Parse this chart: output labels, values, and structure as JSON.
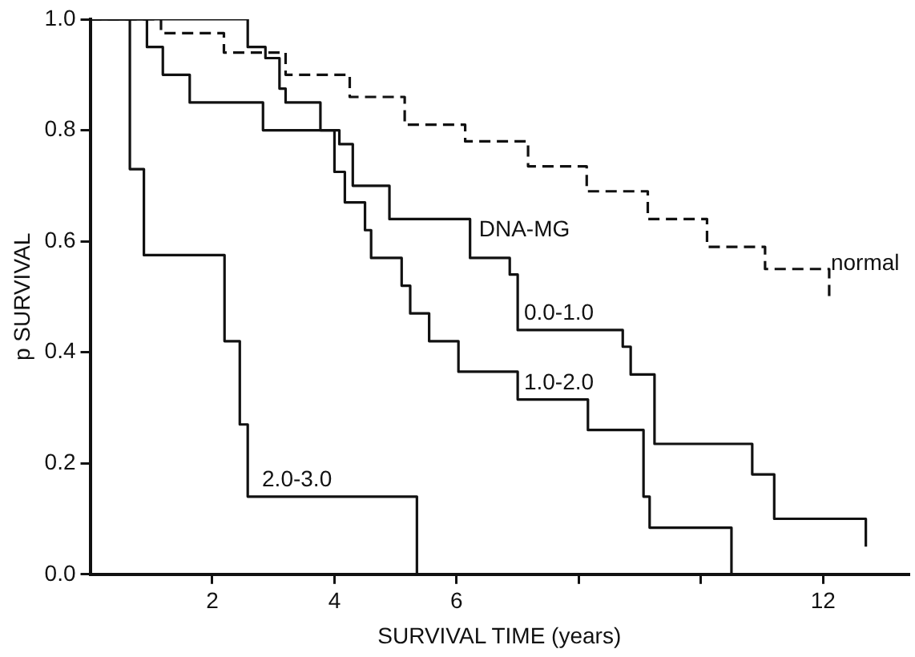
{
  "chart_data": {
    "type": "step",
    "xlabel": "SURVIVAL TIME (years)",
    "ylabel": "p SURVIVAL",
    "annotations": [
      "DNA-MG"
    ],
    "xlim": [
      0,
      13.4
    ],
    "xticks": [
      2,
      4,
      6,
      {
        "value": 8,
        "label": null
      },
      {
        "value": 10,
        "label": null
      },
      12
    ],
    "ylim": [
      0,
      1
    ],
    "yticks": [
      {
        "value": 0,
        "label": "0.0"
      },
      {
        "value": 0.2,
        "label": "0.2"
      },
      {
        "value": 0.4,
        "label": "0.4"
      },
      {
        "value": 0.6,
        "label": "0.6"
      },
      {
        "value": 0.8,
        "label": "0.8"
      },
      {
        "value": 1,
        "label": "1.0"
      }
    ],
    "grid": false,
    "legend": false,
    "marker": "none",
    "series": [
      {
        "name": "normal",
        "color": "#111111",
        "line_style": "dashed",
        "x": [
          0,
          1.16,
          2.19,
          3.2,
          4.25,
          5.15,
          6.14,
          7.17,
          8.13,
          9.13,
          10.1,
          11.05,
          12.1
        ],
        "values": [
          1,
          0.975,
          0.94,
          0.9,
          0.86,
          0.81,
          0.78,
          0.735,
          0.69,
          0.64,
          0.59,
          0.55,
          0.5
        ]
      },
      {
        "name": "0.0-1.0",
        "color": "#111111",
        "x": [
          0,
          2.58,
          2.87,
          3.1,
          3.2,
          3.77,
          4.08,
          4.3,
          4.9,
          6.22,
          6.87,
          7.0,
          8.72,
          8.85,
          9.24,
          10.84,
          11.2,
          12.7
        ],
        "values": [
          1,
          0.95,
          0.93,
          0.875,
          0.85,
          0.8,
          0.775,
          0.7,
          0.64,
          0.57,
          0.54,
          0.44,
          0.41,
          0.36,
          0.235,
          0.18,
          0.1,
          0.05
        ]
      },
      {
        "name": "1.0-2.0",
        "color": "#111111",
        "x": [
          0,
          0.93,
          1.19,
          1.63,
          2.83,
          4.0,
          4.17,
          4.5,
          4.6,
          5.1,
          5.24,
          5.55,
          6.03,
          7.0,
          8.15,
          9.06,
          9.16,
          10.5
        ],
        "values": [
          1,
          0.95,
          0.9,
          0.85,
          0.8,
          0.725,
          0.67,
          0.62,
          0.57,
          0.52,
          0.47,
          0.42,
          0.365,
          0.315,
          0.26,
          0.14,
          0.084,
          0
        ]
      },
      {
        "name": "2.0-3.0",
        "color": "#111111",
        "x": [
          0,
          0.65,
          0.88,
          2.2,
          2.45,
          2.58,
          5.35
        ],
        "values": [
          1,
          0.73,
          0.575,
          0.42,
          0.27,
          0.14,
          0
        ]
      }
    ]
  }
}
